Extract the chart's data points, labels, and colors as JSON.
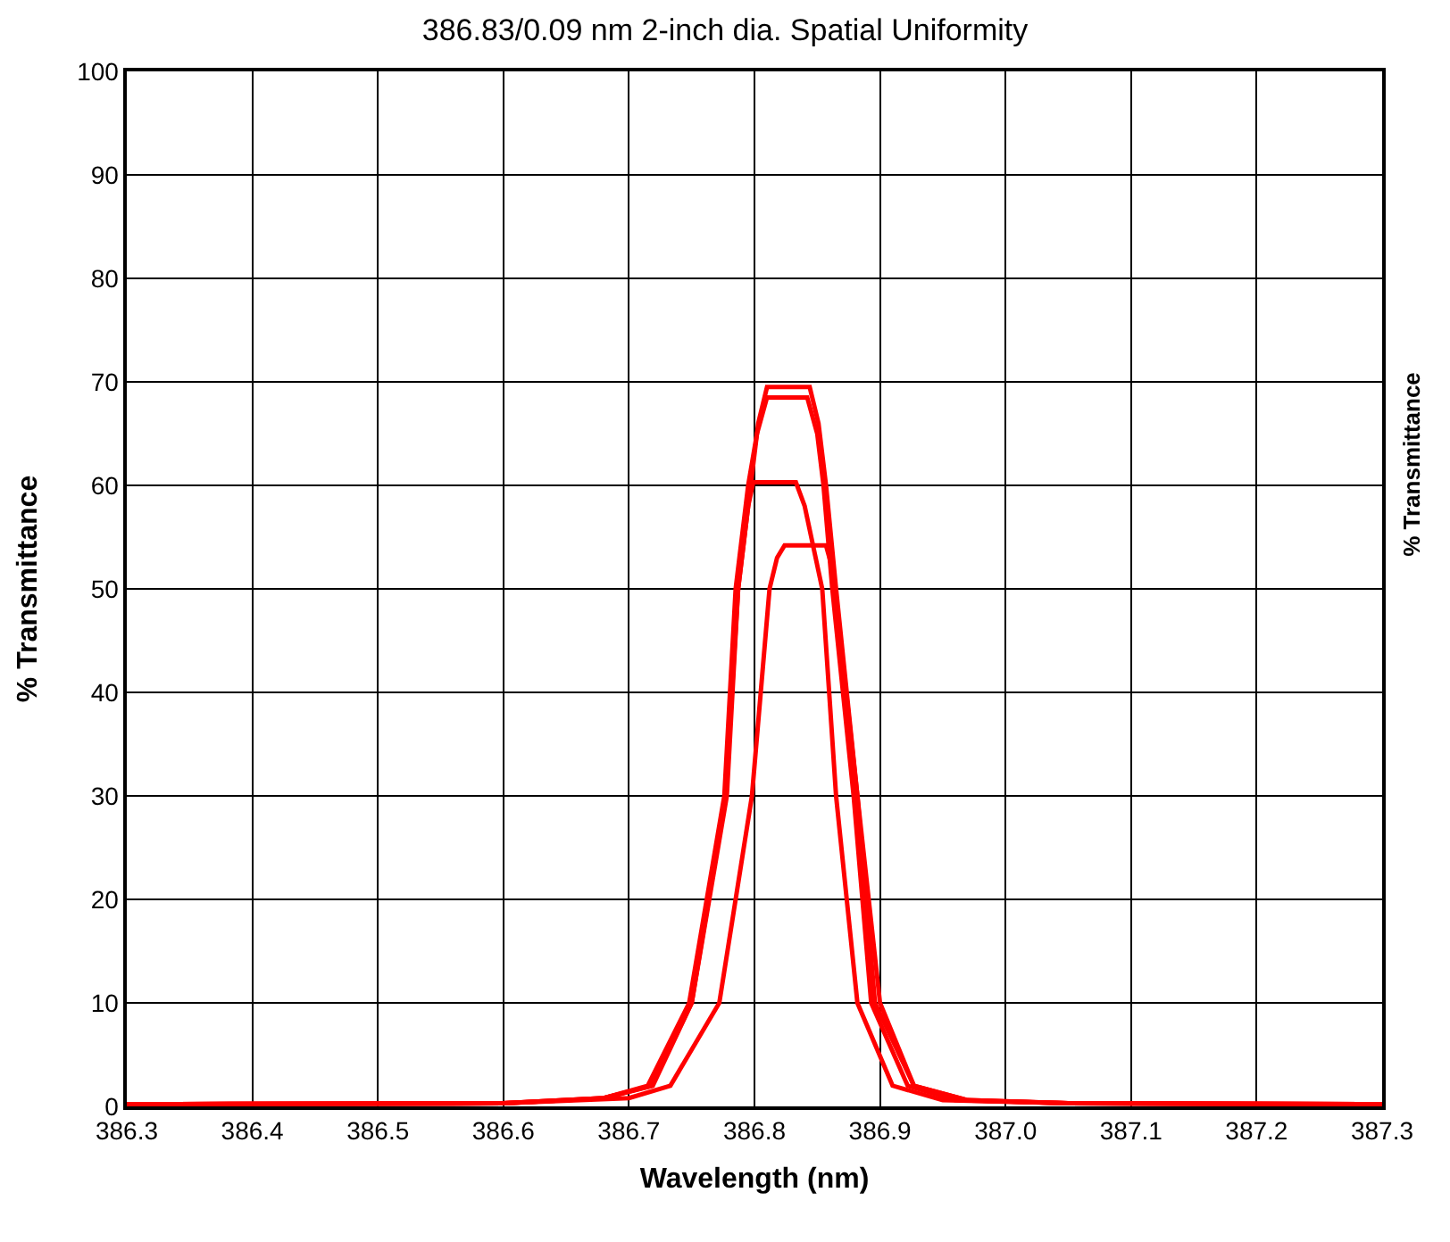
{
  "chart_data": {
    "type": "line",
    "title": "386.83/0.09 nm 2-inch dia. Spatial Uniformity",
    "xlabel": "Wavelength (nm)",
    "ylabel": "% Transmittance",
    "y2label": "% Transmittance",
    "xlim": [
      386.3,
      387.3
    ],
    "xticks": [
      386.3,
      386.4,
      386.5,
      386.6,
      386.7,
      386.8,
      386.9,
      {
        "value": 387.0,
        "label": "387.0"
      },
      387.1,
      387.2,
      387.3
    ],
    "ylim": [
      0,
      100
    ],
    "yticks": [
      0,
      10,
      20,
      30,
      40,
      50,
      60,
      70,
      80,
      90,
      100
    ],
    "grid": true,
    "marker": "none",
    "line_style": "solid",
    "series": [
      {
        "color": "#ff0000",
        "x": [
          386.3,
          386.6,
          386.68,
          386.718,
          386.75,
          386.778,
          386.787,
          386.797,
          386.803,
          386.81,
          386.844,
          386.851,
          386.857,
          386.865,
          386.882,
          386.896,
          386.927,
          386.97,
          387.05,
          387.3
        ],
        "values": [
          0.2,
          0.3,
          0.8,
          2,
          10,
          30,
          50,
          60,
          66,
          69.5,
          69.5,
          66,
          60,
          50,
          30,
          10,
          2,
          0.6,
          0.3,
          0.2
        ]
      },
      {
        "color": "#ff0000",
        "x": [
          386.3,
          386.6,
          386.68,
          386.715,
          386.748,
          386.776,
          386.785,
          386.795,
          386.802,
          386.81,
          386.842,
          386.85,
          386.855,
          386.862,
          386.879,
          386.893,
          386.922,
          386.96,
          387.05,
          387.3
        ],
        "values": [
          0.2,
          0.3,
          0.8,
          2,
          10,
          30,
          50,
          60,
          65,
          68.5,
          68.5,
          65,
          60,
          50,
          30,
          10,
          2,
          0.6,
          0.3,
          0.2
        ]
      },
      {
        "color": "#ff0000",
        "x": [
          386.3,
          386.6,
          386.68,
          386.719,
          386.75,
          386.777,
          386.787,
          386.795,
          386.799,
          386.833,
          386.84,
          386.854,
          386.865,
          386.882,
          386.91,
          386.95,
          387.05,
          387.3
        ],
        "values": [
          0.2,
          0.3,
          0.8,
          2,
          10,
          30,
          50,
          58,
          60.3,
          60.3,
          58,
          50,
          30,
          10,
          2,
          0.6,
          0.3,
          0.2
        ]
      },
      {
        "color": "#ff0000",
        "x": [
          386.3,
          386.6,
          386.7,
          386.733,
          386.772,
          386.798,
          386.812,
          386.818,
          386.824,
          386.857,
          386.862,
          386.864,
          386.882,
          386.9,
          386.927,
          386.97,
          387.05,
          387.3
        ],
        "values": [
          0.2,
          0.3,
          0.8,
          2,
          10,
          30,
          50,
          53,
          54.2,
          54.2,
          52,
          50,
          30,
          10,
          2,
          0.6,
          0.3,
          0.2
        ]
      }
    ]
  }
}
